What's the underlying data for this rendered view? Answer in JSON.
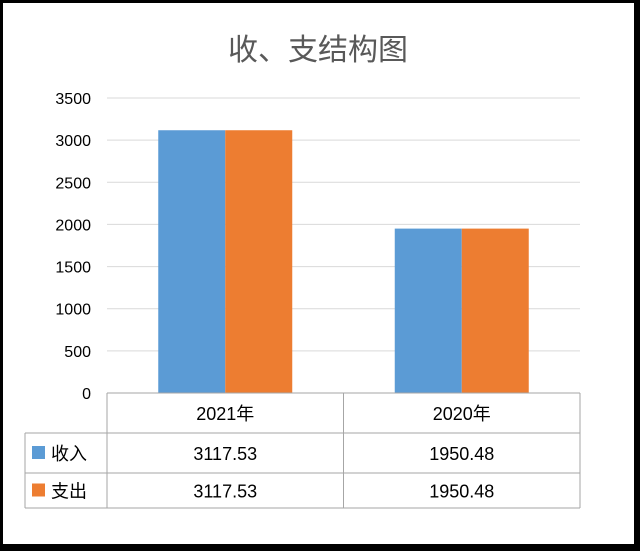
{
  "chart_data": {
    "type": "bar",
    "title": "收、支结构图",
    "categories": [
      "2021年",
      "2020年"
    ],
    "series": [
      {
        "name": "收入",
        "values": [
          3117.53,
          1950.48
        ],
        "value_labels": [
          "3117.53",
          "1950.48"
        ],
        "color": "#5B9BD5"
      },
      {
        "name": "支出",
        "values": [
          3117.53,
          1950.48
        ],
        "value_labels": [
          "3117.53",
          "1950.48"
        ],
        "color": "#ED7D31"
      }
    ],
    "ylim": [
      0,
      3500
    ],
    "yticks": [
      "0",
      "500",
      "1000",
      "1500",
      "2000",
      "2500",
      "3000",
      "3500"
    ],
    "grid": true,
    "legend": "data-table",
    "gridline_color": "#D9D9D9",
    "table_border_color": "#A6A6A6"
  }
}
